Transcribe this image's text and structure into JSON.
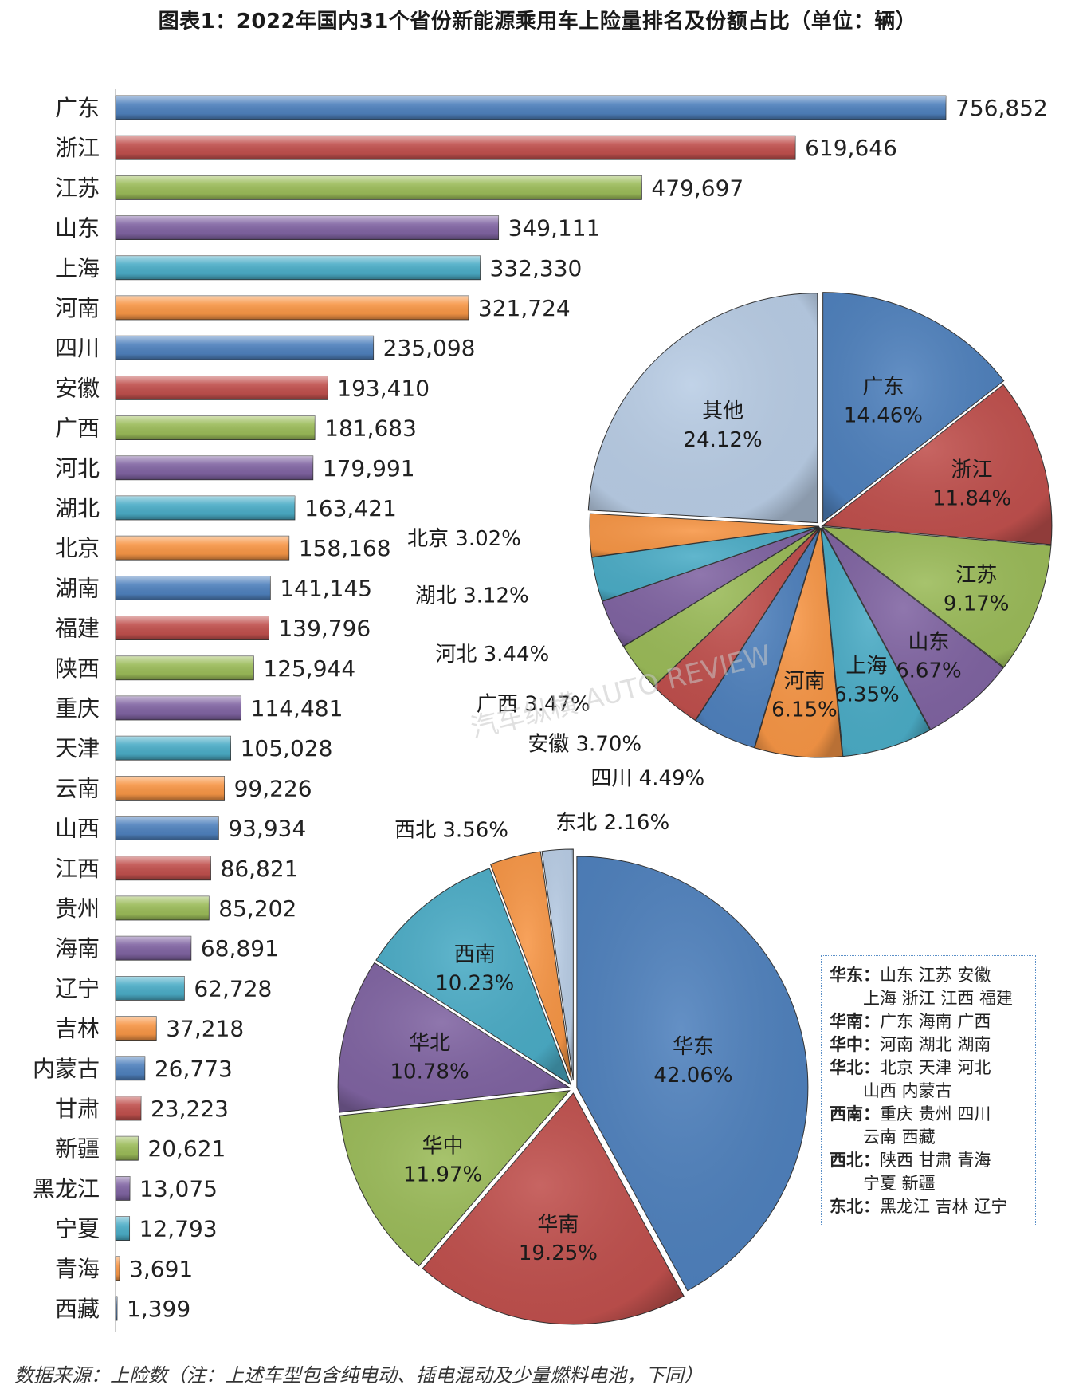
{
  "title": "图表1：2022年国内31个省份新能源乘用车上险量排名及份额占比（单位：辆）",
  "source": "数据来源：上险数（注：上述车型包含纯电动、插电混动及少量燃料电池，下同）",
  "watermark": "汽车纵横 AUTO REVIEW",
  "colors": [
    "#4f81bd",
    "#c0504d",
    "#9bbb59",
    "#8064a2",
    "#4bacc6",
    "#f79646"
  ],
  "chart_data": [
    {
      "type": "bar",
      "orientation": "horizontal",
      "categories": [
        "广东",
        "浙江",
        "江苏",
        "山东",
        "上海",
        "河南",
        "四川",
        "安徽",
        "广西",
        "河北",
        "湖北",
        "北京",
        "湖南",
        "福建",
        "陕西",
        "重庆",
        "天津",
        "云南",
        "山西",
        "江西",
        "贵州",
        "海南",
        "辽宁",
        "吉林",
        "内蒙古",
        "甘肃",
        "新疆",
        "黑龙江",
        "宁夏",
        "青海",
        "西藏"
      ],
      "values": [
        756852,
        619646,
        479697,
        349111,
        332330,
        321724,
        235098,
        193410,
        181683,
        179991,
        163421,
        158168,
        141145,
        139796,
        125944,
        114481,
        105028,
        99226,
        93934,
        86821,
        85202,
        68891,
        62728,
        37218,
        26773,
        23223,
        20621,
        13075,
        12793,
        3691,
        1399
      ],
      "value_labels": [
        "756,852",
        "619,646",
        "479,697",
        "349,111",
        "332,330",
        "321,724",
        "235,098",
        "193,410",
        "181,683",
        "179,991",
        "163,421",
        "158,168",
        "141,145",
        "139,796",
        "125,944",
        "114,481",
        "105,028",
        "99,226",
        "93,934",
        "86,821",
        "85,202",
        "68,891",
        "62,728",
        "37,218",
        "26,773",
        "23,223",
        "20,621",
        "13,075",
        "12,793",
        "3,691",
        "1,399"
      ]
    },
    {
      "type": "pie",
      "labels": [
        "广东",
        "浙江",
        "江苏",
        "山东",
        "上海",
        "河南",
        "四川",
        "安徽",
        "广西",
        "河北",
        "湖北",
        "北京",
        "其他"
      ],
      "values": [
        14.46,
        11.84,
        9.17,
        6.67,
        6.35,
        6.15,
        4.49,
        3.7,
        3.47,
        3.44,
        3.12,
        3.02,
        24.12
      ],
      "value_labels": [
        "14.46%",
        "11.84%",
        "9.17%",
        "6.67%",
        "6.35%",
        "6.15%",
        "4.49%",
        "3.70%",
        "3.47%",
        "3.44%",
        "3.12%",
        "3.02%",
        "24.12%"
      ],
      "colors": [
        "#4f81bd",
        "#c0504d",
        "#9bbb59",
        "#8064a2",
        "#4bacc6",
        "#f79646",
        "#4f81bd",
        "#c0504d",
        "#9bbb59",
        "#8064a2",
        "#4bacc6",
        "#f79646",
        "#b9cde5"
      ]
    },
    {
      "type": "pie",
      "labels": [
        "华东",
        "华南",
        "华中",
        "华北",
        "西南",
        "西北",
        "东北"
      ],
      "values": [
        42.06,
        19.25,
        11.97,
        10.78,
        10.23,
        3.56,
        2.16
      ],
      "value_labels": [
        "42.06%",
        "19.25%",
        "11.97%",
        "10.78%",
        "10.23%",
        "3.56%",
        "2.16%"
      ],
      "colors": [
        "#4f81bd",
        "#c0504d",
        "#9bbb59",
        "#8064a2",
        "#4bacc6",
        "#f79646",
        "#b9cde5"
      ]
    }
  ],
  "region_legend": [
    {
      "key": "华东：",
      "lines": [
        "山东 江苏 安徽",
        "上海 浙江 江西 福建"
      ]
    },
    {
      "key": "华南：",
      "lines": [
        "广东 海南 广西"
      ]
    },
    {
      "key": "华中：",
      "lines": [
        "河南 湖北 湖南"
      ]
    },
    {
      "key": "华北：",
      "lines": [
        "北京 天津 河北",
        "山西 内蒙古"
      ]
    },
    {
      "key": "西南：",
      "lines": [
        "重庆 贵州 四川",
        "云南 西藏"
      ]
    },
    {
      "key": "西北：",
      "lines": [
        "陕西 甘肃 青海",
        "宁夏 新疆"
      ]
    },
    {
      "key": "东北：",
      "lines": [
        "黑龙江 吉林 辽宁"
      ]
    }
  ]
}
